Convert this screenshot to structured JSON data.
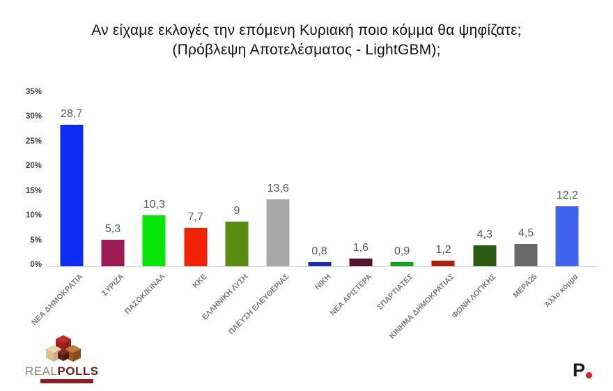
{
  "title": {
    "line1": "Αν είχαμε εκλογές την επόμενη Κυριακή ποιο κόμμα θα ψηφίζατε;",
    "line2": "(Πρόβλεψη Αποτελέσματος - LightGBM);"
  },
  "chart_data": {
    "type": "bar",
    "title": "Αν είχαμε εκλογές την επόμενη Κυριακή ποιο κόμμα θα ψηφίζατε; (Πρόβλεψη Αποτελέσματος - LightGBM);",
    "categories": [
      "ΝΕΑ ΔΗΜΟΚΡΑΤΙΑ",
      "ΣΥΡΙΖΑ",
      "ΠΑΣΟΚ/ΚΙΝΑΛ",
      "ΚΚΕ",
      "ΕΛΛΗΝΙΚΗ ΛΥΣΗ",
      "ΠΛΕΥΣΗ ΕΛΕΥΘΕΡΙΑΣ",
      "ΝΙΚΗ",
      "ΝΕΑ ΑΡΙΣΤΕΡΑ",
      "ΣΠΑΡΤΙΑΤΕΣ",
      "ΚΙΝΗΜΑ ΔΗΜΟΚΡΑΤΙΑΣ",
      "ΦΩΝΗ ΛΟΓΙΚΗΣ",
      "ΜΕΡΑ25",
      "Άλλο κόμμα"
    ],
    "values": [
      28.7,
      5.3,
      10.3,
      7.7,
      9,
      13.6,
      0.8,
      1.6,
      0.9,
      1.2,
      4.3,
      4.5,
      12.2
    ],
    "value_labels": [
      "28,7",
      "5,3",
      "10,3",
      "7,7",
      "9",
      "13,6",
      "0,8",
      "1,6",
      "0,9",
      "1,2",
      "4,3",
      "4,5",
      "12,2"
    ],
    "bar_colors": [
      "#0d2df2",
      "#9c1a56",
      "#06e506",
      "#f32105",
      "#578c0e",
      "#a8a8a8",
      "#1e2fae",
      "#5a1130",
      "#0ca31d",
      "#a8220e",
      "#2d5a11",
      "#696969",
      "#4063ee"
    ],
    "y_ticks": [
      "0%",
      "5%",
      "10%",
      "15%",
      "20%",
      "25%",
      "30%",
      "35%"
    ],
    "ylim": [
      0,
      35
    ],
    "xlabel": "",
    "ylabel": "",
    "grid": false,
    "legend": "none",
    "value_label_color": "#595959",
    "axis_label_color": "#7d7d7d"
  },
  "branding": {
    "left_logo": {
      "word_part1": "REAL",
      "word_part2": "POLLS",
      "cube_red": "#cc2229",
      "cube_red_dark": "#8f1f1c",
      "cube_cream": "#e9d6ac",
      "cube_cream_dark": "#d9c292",
      "cube_orange": "#c17a3a",
      "cube_orange_dark": "#9c5a22",
      "cube_maroon": "#7a2a22"
    },
    "right_logo": {
      "letter": "P",
      "dot_color": "#e42320"
    }
  }
}
